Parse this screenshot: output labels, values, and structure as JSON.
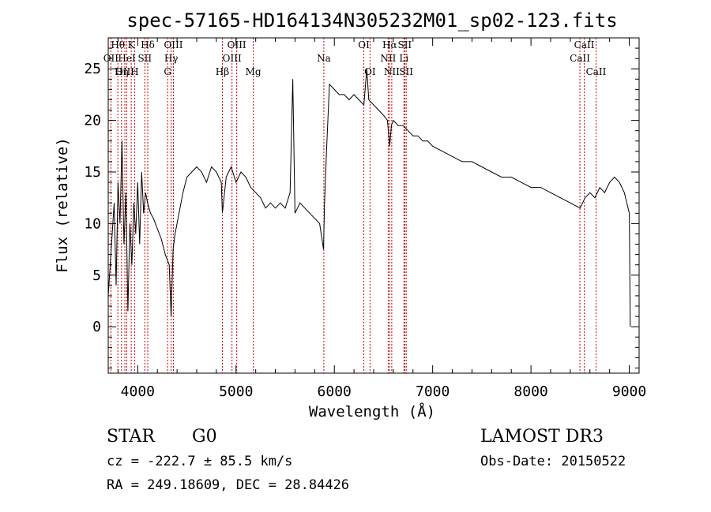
{
  "chart_data": {
    "type": "line",
    "title": "spec-57165-HD164134N305232M01_sp02-123.fits",
    "xlabel": "Wavelength (Å)",
    "ylabel": "Flux (relative)",
    "xlim": [
      3700,
      9100
    ],
    "ylim": [
      -4.5,
      28.0
    ],
    "x_ticks": [
      4000,
      5000,
      6000,
      7000,
      8000,
      9000
    ],
    "y_ticks": [
      0,
      5,
      10,
      15,
      20,
      25
    ],
    "grid": false,
    "series": [
      {
        "color": "#000000",
        "x": [
          3700,
          3720,
          3740,
          3760,
          3780,
          3800,
          3820,
          3840,
          3860,
          3880,
          3900,
          3920,
          3940,
          3960,
          3980,
          4000,
          4020,
          4040,
          4060,
          4080,
          4100,
          4130,
          4160,
          4200,
          4240,
          4280,
          4320,
          4340,
          4360,
          4380,
          4420,
          4460,
          4500,
          4550,
          4600,
          4650,
          4700,
          4750,
          4800,
          4850,
          4861,
          4900,
          4950,
          5000,
          5050,
          5100,
          5150,
          5200,
          5250,
          5300,
          5350,
          5400,
          5450,
          5500,
          5550,
          5577,
          5600,
          5650,
          5700,
          5750,
          5800,
          5850,
          5890,
          5900,
          5920,
          5950,
          6000,
          6050,
          6100,
          6150,
          6200,
          6250,
          6300,
          6330,
          6350,
          6400,
          6450,
          6500,
          6540,
          6563,
          6580,
          6600,
          6650,
          6700,
          6750,
          6800,
          6850,
          6900,
          6950,
          7000,
          7100,
          7200,
          7300,
          7400,
          7500,
          7600,
          7700,
          7800,
          7900,
          8000,
          8100,
          8200,
          8300,
          8400,
          8500,
          8550,
          8600,
          8650,
          8700,
          8750,
          8800,
          8850,
          8900,
          8950,
          9000,
          9010
        ],
        "y": [
          3,
          6,
          9,
          12,
          4,
          14,
          10,
          18,
          8,
          13,
          1.5,
          10,
          6,
          12,
          9,
          14,
          8,
          15,
          11,
          13,
          12,
          11,
          10.5,
          9.5,
          8.5,
          7,
          6,
          1,
          7.5,
          9,
          11,
          13,
          14.5,
          15,
          15.5,
          15,
          14,
          15.5,
          15,
          14,
          11,
          14.5,
          15.5,
          14,
          15,
          14.5,
          13.5,
          13,
          12.5,
          11.5,
          12,
          11.5,
          12,
          11.5,
          13,
          24,
          11,
          12,
          11.5,
          11,
          10.5,
          10,
          7.5,
          12,
          17,
          23.5,
          23,
          22.5,
          22.5,
          22,
          22.5,
          22,
          21.5,
          25,
          22,
          21.5,
          21,
          20.5,
          20,
          17.5,
          19.5,
          20,
          19.5,
          19.5,
          19,
          18.5,
          18.5,
          18,
          18,
          17.5,
          17,
          16.5,
          16,
          16,
          15.5,
          15,
          14.5,
          14.5,
          14,
          13.5,
          13.5,
          13,
          12.5,
          12,
          11.5,
          12.5,
          13,
          12.5,
          13.5,
          13,
          14,
          14.5,
          14,
          13,
          11,
          0
        ]
      }
    ],
    "line_labels": [
      {
        "label": "Hθ",
        "x": 3798,
        "row": 1
      },
      {
        "label": "OII",
        "x": 3727,
        "row": 2
      },
      {
        "label": "OIII",
        "x": 3869,
        "row": 3
      },
      {
        "label": "K",
        "x": 3934,
        "row": 1
      },
      {
        "label": "H",
        "x": 3968,
        "row": 3
      },
      {
        "label": "HeI",
        "x": 3889,
        "row": 2
      },
      {
        "label": "Hη",
        "x": 3835,
        "row": 3
      },
      {
        "label": "Hδ",
        "x": 4102,
        "row": 1
      },
      {
        "label": "SII",
        "x": 4072,
        "row": 2
      },
      {
        "label": "OIII",
        "x": 4363,
        "row": 1
      },
      {
        "label": "Hγ",
        "x": 4340,
        "row": 2
      },
      {
        "label": "G",
        "x": 4304,
        "row": 3
      },
      {
        "label": "Hβ",
        "x": 4861,
        "row": 3
      },
      {
        "label": "OIII",
        "x": 5007,
        "row": 1
      },
      {
        "label": "OIII",
        "x": 4959,
        "row": 2
      },
      {
        "label": "Mg",
        "x": 5175,
        "row": 3
      },
      {
        "label": "Na",
        "x": 5893,
        "row": 2
      },
      {
        "label": "OI",
        "x": 6300,
        "row": 1
      },
      {
        "label": "OI",
        "x": 6363,
        "row": 3
      },
      {
        "label": "Hα",
        "x": 6563,
        "row": 1
      },
      {
        "label": "SII",
        "x": 6716,
        "row": 1
      },
      {
        "label": "NII",
        "x": 6548,
        "row": 2
      },
      {
        "label": "Li",
        "x": 6708,
        "row": 2
      },
      {
        "label": "NII",
        "x": 6584,
        "row": 3
      },
      {
        "label": "SII",
        "x": 6731,
        "row": 3
      },
      {
        "label": "CaII",
        "x": 8542,
        "row": 1
      },
      {
        "label": "CaII",
        "x": 8498,
        "row": 2
      },
      {
        "label": "CaII",
        "x": 8662,
        "row": 3
      }
    ]
  },
  "info": {
    "object_class": "STAR",
    "subclass": "G0",
    "survey": "LAMOST DR3",
    "cz": "cz = -222.7 ± 85.5 km/s",
    "obs_date": "Obs-Date: 20150522",
    "coords": "RA = 249.18609, DEC =  28.84426"
  }
}
